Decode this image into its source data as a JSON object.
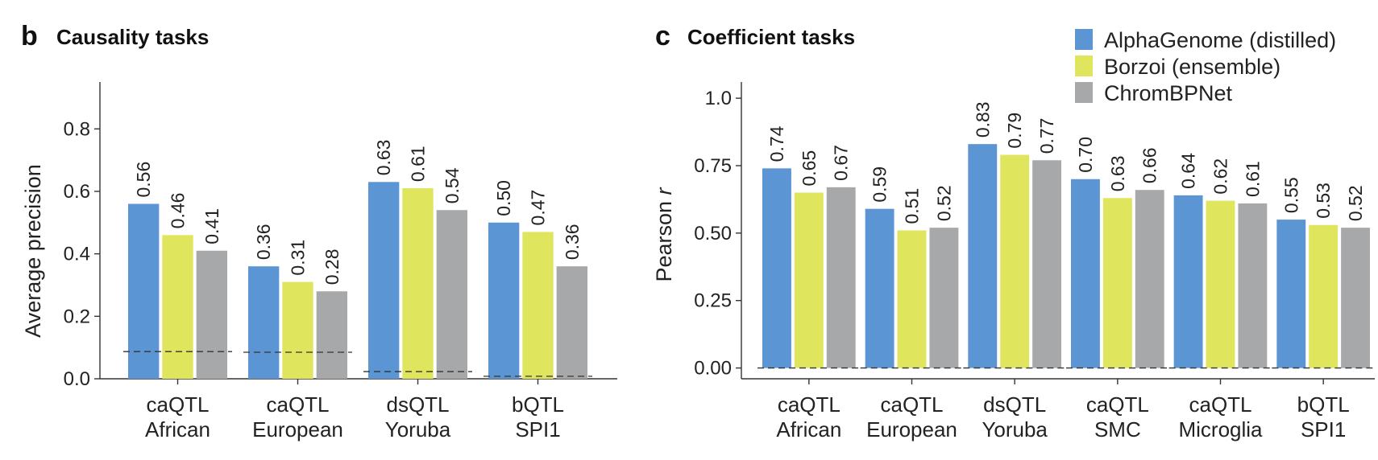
{
  "colors": {
    "alphagenome": "#5b95d4",
    "borzoi": "#dfe55c",
    "chrombpnet": "#a7a8aa",
    "axis": "#333333"
  },
  "legend": {
    "entries": [
      {
        "label": "AlphaGenome (distilled)",
        "color_key": "alphagenome"
      },
      {
        "label": "Borzoi (ensemble)",
        "color_key": "borzoi"
      },
      {
        "label": "ChromBPNet",
        "color_key": "chrombpnet"
      }
    ]
  },
  "panels": {
    "b": {
      "letter": "b",
      "title": "Causality tasks"
    },
    "c": {
      "letter": "c",
      "title": "Coefficient tasks"
    }
  },
  "chart_data": [
    {
      "panel": "b",
      "type": "bar",
      "title": "Causality tasks",
      "ylabel": "Average precision",
      "xlabel": "",
      "ylim": [
        0,
        0.95
      ],
      "yticks": [
        "0.0",
        "0.2",
        "0.4",
        "0.6",
        "0.8"
      ],
      "yticks_values": [
        0.0,
        0.2,
        0.4,
        0.6,
        0.8
      ],
      "categories": [
        [
          "caQTL",
          "African"
        ],
        [
          "caQTL",
          "European"
        ],
        [
          "dsQTL",
          "Yoruba"
        ],
        [
          "bQTL",
          "SPI1"
        ]
      ],
      "series": [
        {
          "name": "AlphaGenome (distilled)",
          "color_key": "alphagenome",
          "values": [
            0.56,
            0.36,
            0.63,
            0.5
          ],
          "labels": [
            "0.56",
            "0.36",
            "0.63",
            "0.50"
          ]
        },
        {
          "name": "Borzoi (ensemble)",
          "color_key": "borzoi",
          "values": [
            0.46,
            0.31,
            0.61,
            0.47
          ],
          "labels": [
            "0.46",
            "0.31",
            "0.61",
            "0.47"
          ]
        },
        {
          "name": "ChromBPNet",
          "color_key": "chrombpnet",
          "values": [
            0.41,
            0.28,
            0.54,
            0.36
          ],
          "labels": [
            "0.41",
            "0.28",
            "0.54",
            "0.36"
          ]
        }
      ],
      "baselines": [
        0.087,
        0.085,
        0.023,
        0.008
      ],
      "grid": false
    },
    {
      "panel": "c",
      "type": "bar",
      "title": "Coefficient tasks",
      "ylabel": "Pearson r",
      "xlabel": "",
      "ylim": [
        -0.04,
        1.06
      ],
      "yticks": [
        "0.00",
        "0.25",
        "0.50",
        "0.75",
        "1.0"
      ],
      "yticks_values": [
        0.0,
        0.25,
        0.5,
        0.75,
        1.0
      ],
      "categories": [
        [
          "caQTL",
          "African"
        ],
        [
          "caQTL",
          "European"
        ],
        [
          "dsQTL",
          "Yoruba"
        ],
        [
          "caQTL",
          "SMC"
        ],
        [
          "caQTL",
          "Microglia"
        ],
        [
          "bQTL",
          "SPI1"
        ]
      ],
      "series": [
        {
          "name": "AlphaGenome (distilled)",
          "color_key": "alphagenome",
          "values": [
            0.74,
            0.59,
            0.83,
            0.7,
            0.64,
            0.55
          ],
          "labels": [
            "0.74",
            "0.59",
            "0.83",
            "0.70",
            "0.64",
            "0.55"
          ]
        },
        {
          "name": "Borzoi (ensemble)",
          "color_key": "borzoi",
          "values": [
            0.65,
            0.51,
            0.79,
            0.63,
            0.62,
            0.53
          ],
          "labels": [
            "0.65",
            "0.51",
            "0.79",
            "0.63",
            "0.62",
            "0.53"
          ]
        },
        {
          "name": "ChromBPNet",
          "color_key": "chrombpnet",
          "values": [
            0.67,
            0.52,
            0.77,
            0.66,
            0.61,
            0.52
          ],
          "labels": [
            "0.67",
            "0.52",
            "0.77",
            "0.66",
            "0.61",
            "0.52"
          ]
        }
      ],
      "baselines": [
        0.0,
        0.0,
        0.0,
        0.0,
        0.0,
        0.0
      ],
      "grid": false
    }
  ]
}
